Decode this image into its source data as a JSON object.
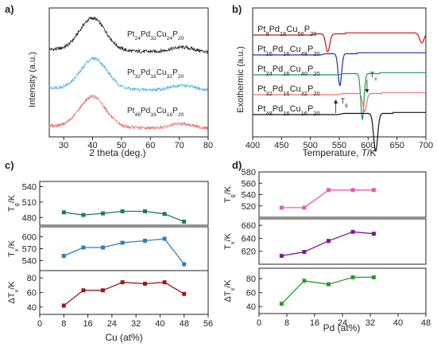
{
  "chart_data": [
    {
      "panel": "a)",
      "type": "line",
      "xlabel": "2 theta (deg.)",
      "ylabel": "Intensity (a.u.)",
      "xlim": [
        25,
        80
      ],
      "xticks": [
        30,
        40,
        50,
        60,
        70,
        80
      ],
      "show_y_ticks": false,
      "series": [
        {
          "name": "Pt24Pd32Cu24P20",
          "label_parts": [
            [
              "Pt",
              ""
            ],
            [
              "24",
              "sub"
            ],
            [
              "Pd",
              ""
            ],
            [
              "32",
              "sub"
            ],
            [
              "Cu",
              ""
            ],
            [
              "24",
              "sub"
            ],
            [
              "P",
              ""
            ],
            [
              "20",
              "sub"
            ]
          ],
          "color": "#1a1a1a",
          "offset": 2.0,
          "peak_x": 40,
          "peak_height": 0.85,
          "width": 4.5
        },
        {
          "name": "Pt32Pd16Cu32P20",
          "label_parts": [
            [
              "Pt",
              ""
            ],
            [
              "32",
              "sub"
            ],
            [
              "Pd",
              ""
            ],
            [
              "16",
              "sub"
            ],
            [
              "Cu",
              ""
            ],
            [
              "32",
              "sub"
            ],
            [
              "P",
              ""
            ],
            [
              "20",
              "sub"
            ]
          ],
          "color": "#4db3e6",
          "offset": 1.0,
          "peak_x": 40.5,
          "peak_height": 0.8,
          "width": 4.5
        },
        {
          "name": "Pt48Pd16Cu16P20",
          "label_parts": [
            [
              "Pt",
              ""
            ],
            [
              "48",
              "sub"
            ],
            [
              "Pd",
              ""
            ],
            [
              "16",
              "sub"
            ],
            [
              "Cu",
              ""
            ],
            [
              "16",
              "sub"
            ],
            [
              "P",
              ""
            ],
            [
              "20",
              "sub"
            ]
          ],
          "color": "#f07070",
          "offset": 0.0,
          "peak_x": 40,
          "peak_height": 0.8,
          "width": 4.5
        }
      ]
    },
    {
      "panel": "b)",
      "type": "line",
      "xlabel_parts": [
        [
          "Temperature, ",
          ""
        ],
        [
          "T",
          "italic"
        ],
        [
          "/K",
          ""
        ]
      ],
      "ylabel": "Exothermic (a.u.)",
      "xlim": [
        400,
        700
      ],
      "xticks": [
        400,
        450,
        500,
        550,
        600,
        650,
        700
      ],
      "show_y_ticks": false,
      "annotations": {
        "tg": "T",
        "tg_sub": "g",
        "tx": "T",
        "tx_sub": "x"
      },
      "series": [
        {
          "name": "Pt8Pd16Cu56P20",
          "label_parts": [
            [
              "Pt",
              ""
            ],
            [
              "8",
              "sub"
            ],
            [
              "Pd",
              ""
            ],
            [
              "16",
              "sub"
            ],
            [
              "Cu",
              ""
            ],
            [
              "56",
              "sub"
            ],
            [
              "P",
              ""
            ],
            [
              "20",
              "sub"
            ]
          ],
          "color": "#cc1111",
          "offset": 4,
          "tg": 500,
          "tx": 525,
          "dip_center": 530,
          "dip_depth": 0.9,
          "dip_width": 3.5,
          "second_dip": {
            "center": 693,
            "depth": 0.5,
            "width": 4
          }
        },
        {
          "name": "Pt16Pd16Cu48P20",
          "label_parts": [
            [
              "Pt",
              ""
            ],
            [
              "16",
              "sub"
            ],
            [
              "Pd",
              ""
            ],
            [
              "16",
              "sub"
            ],
            [
              "Cu",
              ""
            ],
            [
              "48",
              "sub"
            ],
            [
              "P",
              ""
            ],
            [
              "20",
              "sub"
            ]
          ],
          "color": "#1a2fbf",
          "offset": 3,
          "tg": 517,
          "tx": 545,
          "dip_center": 551,
          "dip_depth": 1.6,
          "dip_width": 3.0
        },
        {
          "name": "Pt24Pd16Cu40P20",
          "label_parts": [
            [
              "Pt",
              ""
            ],
            [
              "24",
              "sub"
            ],
            [
              "Pd",
              ""
            ],
            [
              "16",
              "sub"
            ],
            [
              "Cu",
              ""
            ],
            [
              "40",
              "sub"
            ],
            [
              "P",
              ""
            ],
            [
              "20",
              "sub"
            ]
          ],
          "color": "#1a9955",
          "offset": 2,
          "tg": 548,
          "tx": 580,
          "dip_center": 590,
          "dip_depth": 2.3,
          "dip_width": 2.8
        },
        {
          "name": "Pt32Pd16Cu32P20",
          "label_parts": [
            [
              "Pt",
              ""
            ],
            [
              "32",
              "sub"
            ],
            [
              "Pd",
              ""
            ],
            [
              "16",
              "sub"
            ],
            [
              "Cu",
              ""
            ],
            [
              "32",
              "sub"
            ],
            [
              "P",
              ""
            ],
            [
              "20",
              "sub"
            ]
          ],
          "color": "#f07070",
          "offset": 1,
          "tg": 548,
          "tx": 590,
          "dip_center": 594,
          "dip_depth": 0.9,
          "dip_width": 3.2
        },
        {
          "name": "Pt48Pd16Cu16P20",
          "label_parts": [
            [
              "Pt",
              ""
            ],
            [
              "48",
              "sub"
            ],
            [
              "Pd",
              ""
            ],
            [
              "16",
              "sub"
            ],
            [
              "Cu",
              ""
            ],
            [
              "16",
              "sub"
            ],
            [
              "P",
              ""
            ],
            [
              "20",
              "sub"
            ]
          ],
          "color": "#111111",
          "offset": 0,
          "tg": 548,
          "tx": 600,
          "dip_center": 613,
          "dip_depth": 1.9,
          "dip_width": 3.5
        }
      ]
    },
    {
      "panel": "c)",
      "type": "line",
      "xlabel": "Cu (at%)",
      "xlim": [
        0,
        56
      ],
      "xticks": [
        0,
        8,
        16,
        24,
        32,
        40,
        48,
        56
      ],
      "x": [
        8,
        14.5,
        21,
        27.5,
        35,
        41.5,
        48
      ],
      "subplots": [
        {
          "ylabel": "T",
          "ylabel_sub": "g",
          "ylabel_suffix": "/K",
          "color": "#1f7a5a",
          "ylim": [
            465,
            550
          ],
          "yticks": [
            480,
            510,
            540
          ],
          "values": [
            490,
            485,
            488,
            492,
            492,
            487,
            472
          ]
        },
        {
          "ylabel": "T",
          "ylabel_sub": "x",
          "ylabel_suffix": "/K",
          "color": "#2a7fbf",
          "ylim": [
            515,
            625
          ],
          "yticks": [
            540,
            570,
            600
          ],
          "values": [
            552,
            573,
            573,
            585,
            590,
            595,
            531
          ]
        },
        {
          "ylabel": "ΔT",
          "ylabel_sub": "x",
          "ylabel_suffix": "/K",
          "color": "#9a1a1a",
          "ylim": [
            30,
            90
          ],
          "yticks": [
            40,
            60,
            80
          ],
          "values": [
            42,
            63,
            63,
            74,
            72,
            74,
            58
          ]
        }
      ]
    },
    {
      "panel": "d)",
      "type": "line",
      "xlabel": "Pd (at%)",
      "xlim": [
        0,
        48
      ],
      "xticks": [
        0,
        8,
        16,
        24,
        32,
        40,
        48
      ],
      "x": [
        6.5,
        13,
        20,
        27,
        33
      ],
      "subplots": [
        {
          "ylabel": "T",
          "ylabel_sub": "g",
          "ylabel_suffix": "/K",
          "color": "#ee55bb",
          "ylim": [
            500,
            580
          ],
          "yticks": [
            520,
            540,
            560,
            580
          ],
          "values": [
            517,
            517,
            548,
            548,
            548
          ]
        },
        {
          "ylabel": "T",
          "ylabel_sub": "x",
          "ylabel_suffix": "/K",
          "color": "#7a1a9a",
          "ylim": [
            600,
            670
          ],
          "yticks": [
            620,
            640,
            660
          ],
          "values": [
            613,
            619,
            636,
            650,
            647
          ]
        },
        {
          "ylabel": "ΔT",
          "ylabel_sub": "x",
          "ylabel_suffix": "/K",
          "color": "#2a9a2a",
          "ylim": [
            30,
            95
          ],
          "yticks": [
            40,
            60,
            80
          ],
          "values": [
            44,
            77,
            72,
            82,
            82
          ]
        }
      ]
    }
  ]
}
